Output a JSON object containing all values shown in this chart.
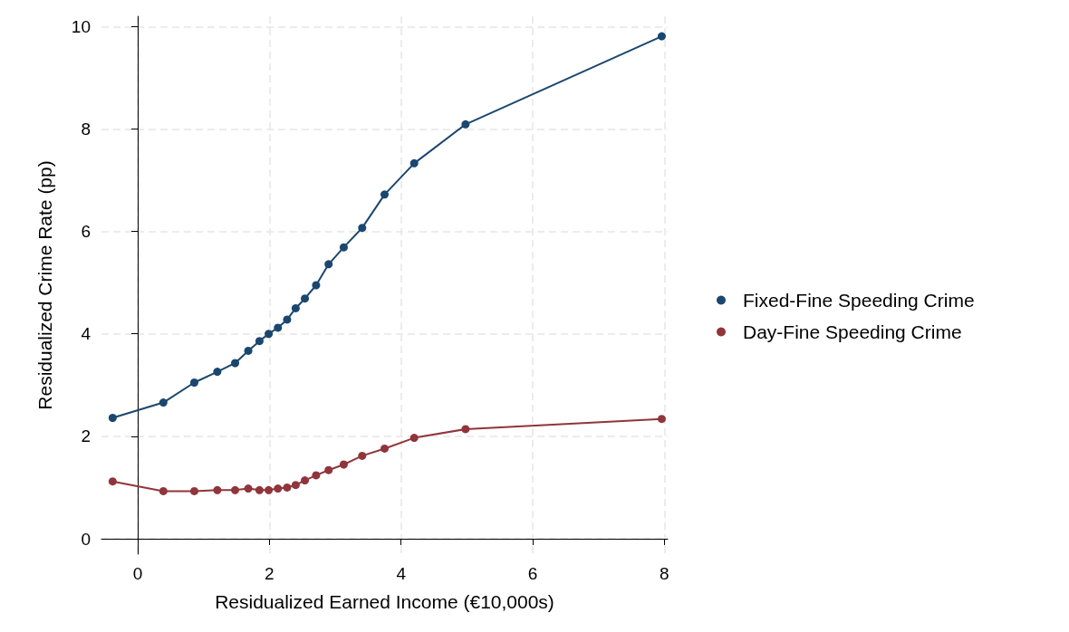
{
  "chart_data": {
    "type": "line",
    "xlabel": "Residualized Earned Income (€10,000s)",
    "ylabel": "Residualized Crime Rate (pp)",
    "x": [
      -0.38,
      0.39,
      0.86,
      1.21,
      1.48,
      1.68,
      1.85,
      1.99,
      2.13,
      2.27,
      2.4,
      2.54,
      2.71,
      2.9,
      3.13,
      3.41,
      3.75,
      4.2,
      4.98,
      7.96
    ],
    "series": [
      {
        "name": "Fixed-Fine Speeding Crime",
        "color": "#1a476f",
        "values": [
          2.36,
          2.66,
          3.05,
          3.26,
          3.43,
          3.67,
          3.86,
          4.0,
          4.12,
          4.28,
          4.5,
          4.69,
          4.95,
          5.36,
          5.69,
          6.07,
          6.72,
          7.33,
          8.09,
          9.81
        ]
      },
      {
        "name": "Day-Fine Speeding Crime",
        "color": "#90353b",
        "values": [
          1.12,
          0.93,
          0.93,
          0.95,
          0.95,
          0.98,
          0.95,
          0.95,
          0.98,
          1.0,
          1.05,
          1.14,
          1.24,
          1.34,
          1.45,
          1.62,
          1.76,
          1.97,
          2.14,
          2.34
        ]
      }
    ],
    "xlim": [
      -0.55,
      8.05
    ],
    "xticks": [
      0,
      2,
      4,
      6,
      8
    ],
    "ylim": [
      -0.3,
      10.2
    ],
    "yticks": [
      0,
      2,
      4,
      6,
      8,
      10
    ],
    "grid": true,
    "legend": "right",
    "marker": "circle",
    "line_style": "solid"
  }
}
